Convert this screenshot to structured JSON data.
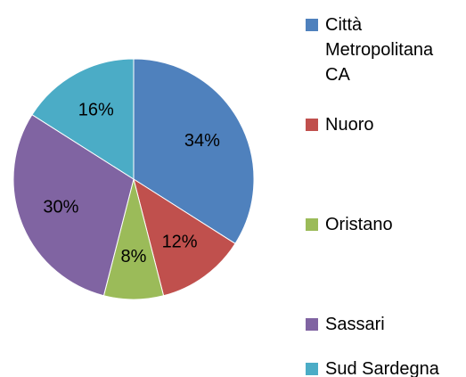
{
  "chart_data": {
    "type": "pie",
    "categories": [
      "Città Metropolitana CA",
      "Nuoro",
      "Oristano",
      "Sassari",
      "Sud Sardegna"
    ],
    "values": [
      34,
      12,
      8,
      30,
      16
    ],
    "value_labels": [
      "34%",
      "12%",
      "8%",
      "30%",
      "16%"
    ],
    "colors": [
      "#4f81bd",
      "#c0504d",
      "#9bbb59",
      "#8064a2",
      "#4bacc6"
    ],
    "legend": "right"
  }
}
